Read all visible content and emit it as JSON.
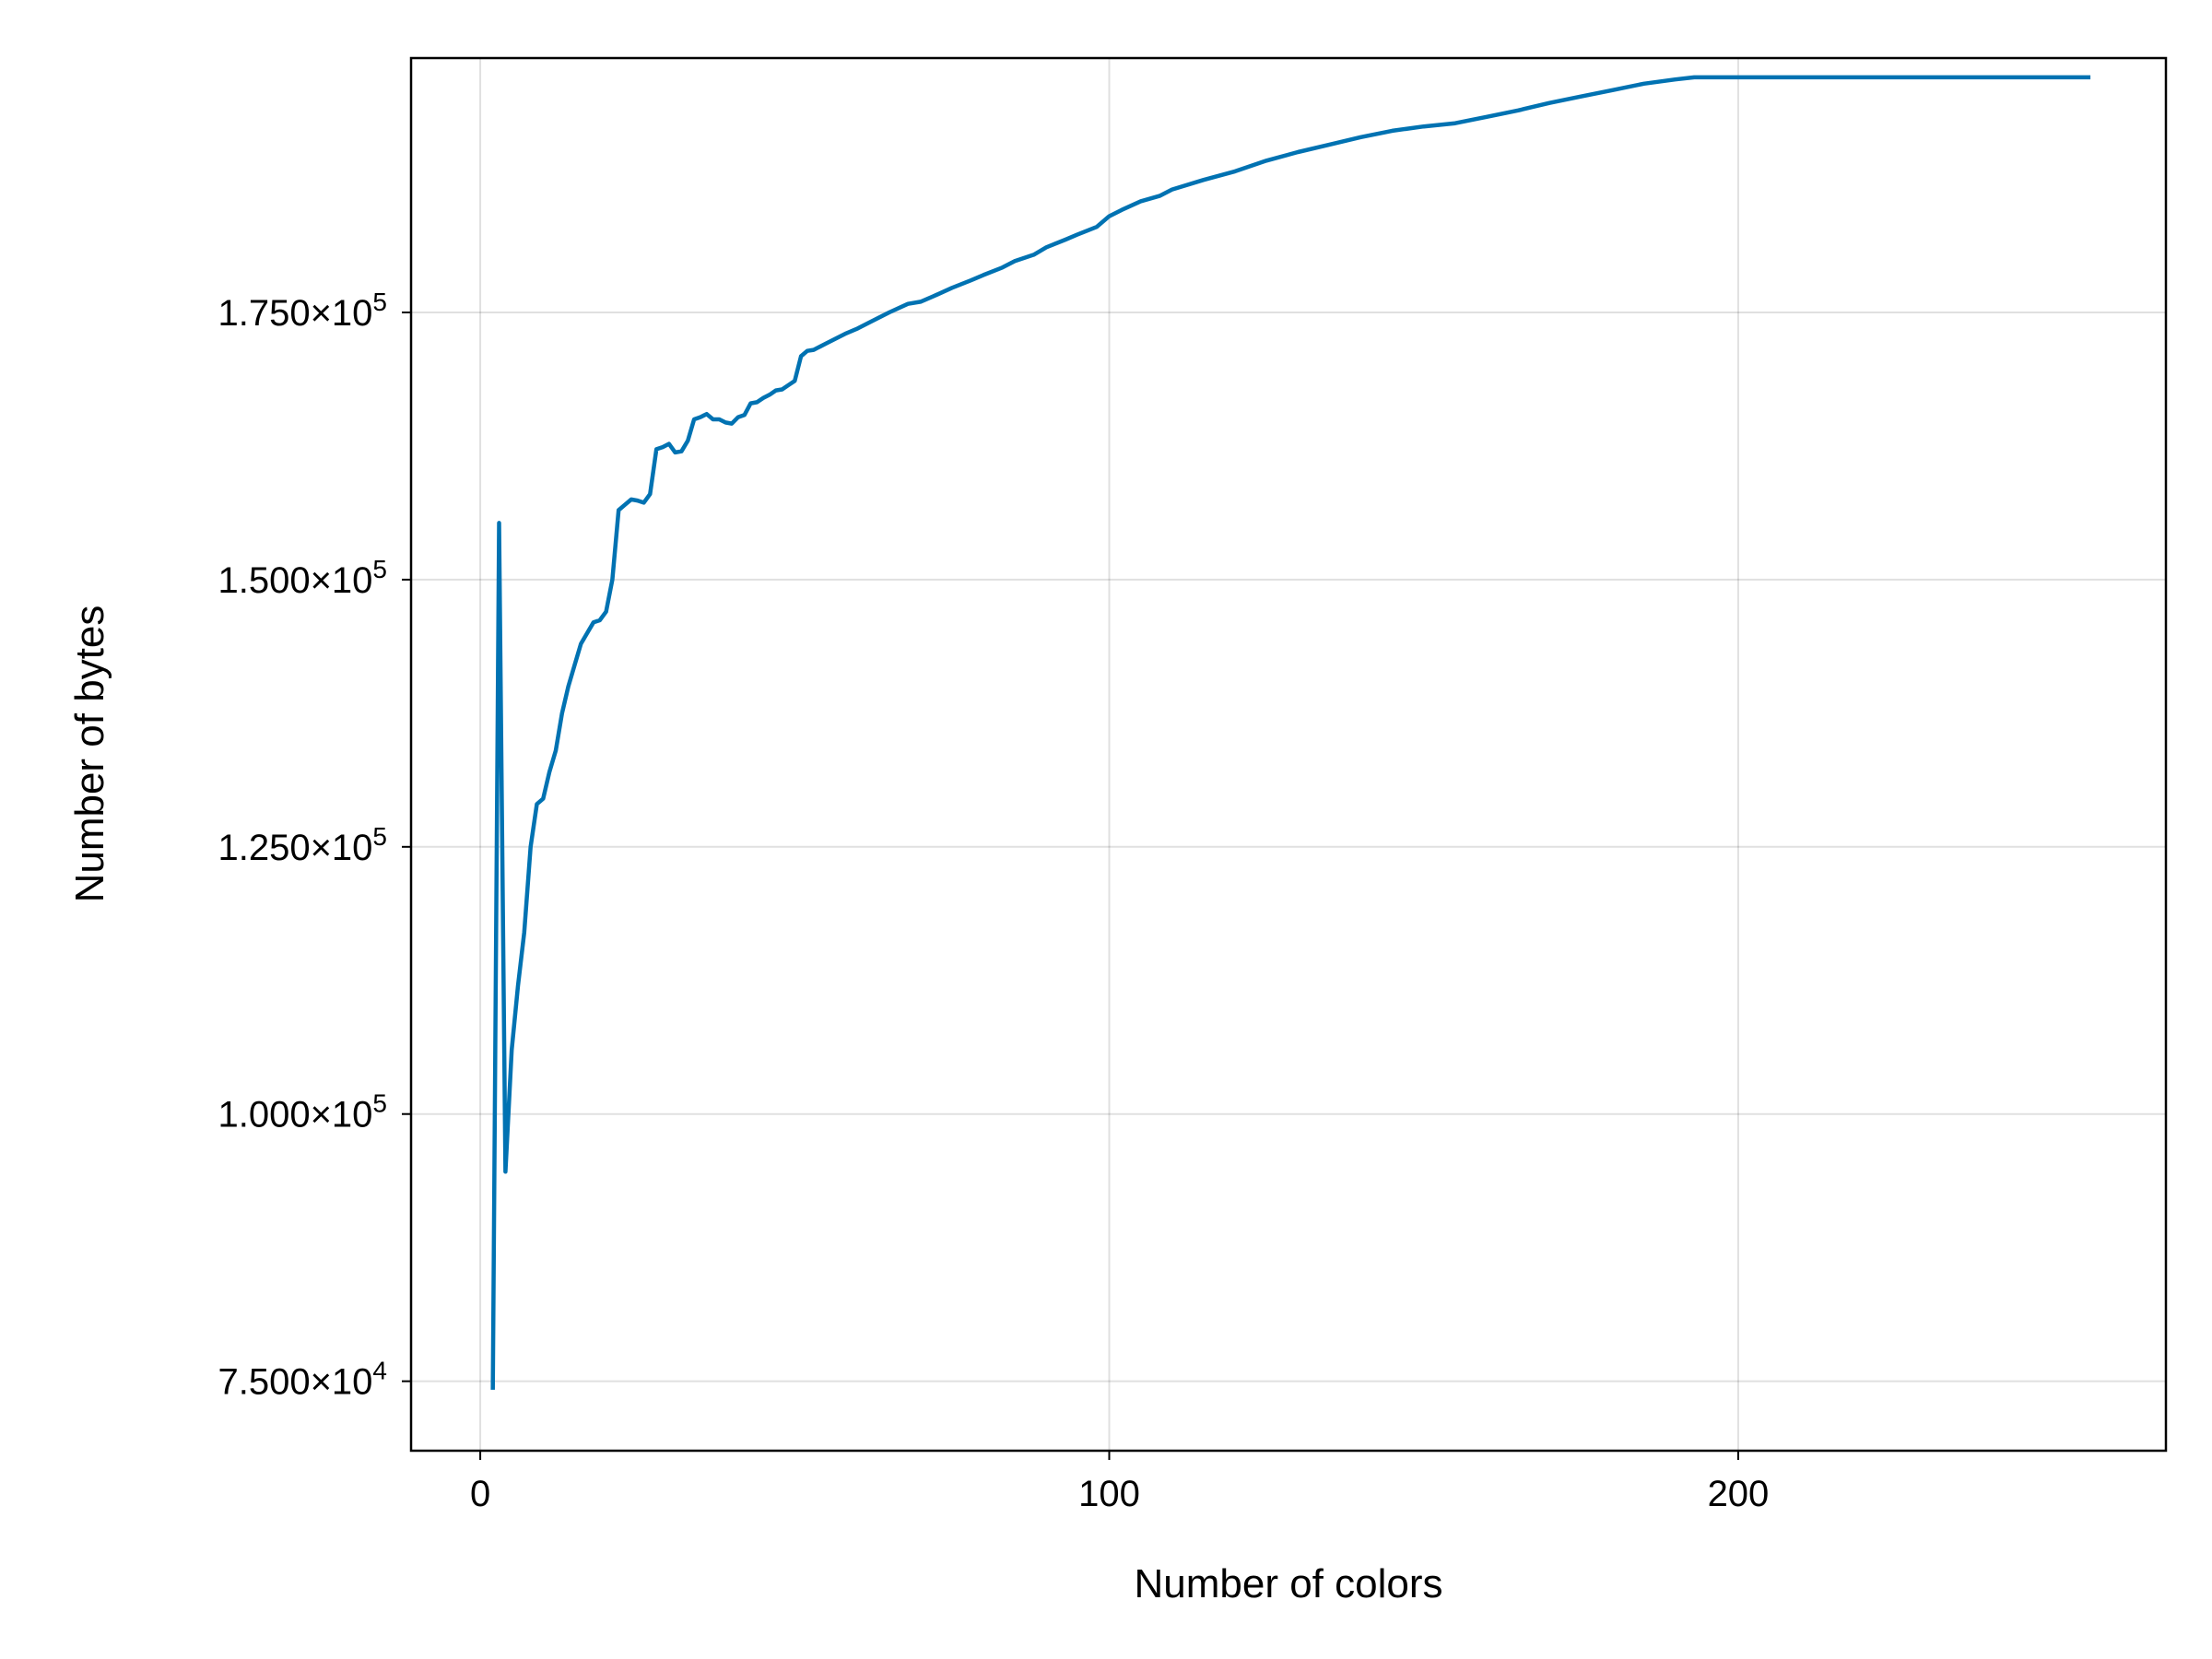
{
  "chart_data": {
    "type": "line",
    "title": "",
    "xlabel": "Number of colors",
    "ylabel": "Number of bytes",
    "xlim": [
      -11,
      268
    ],
    "ylim": [
      68500,
      198800
    ],
    "grid": true,
    "line_color": "#0072b2",
    "x_ticks": [
      {
        "value": 0,
        "label": "0"
      },
      {
        "value": 100,
        "label": "100"
      },
      {
        "value": 200,
        "label": "200"
      }
    ],
    "y_ticks": [
      {
        "value": 75000,
        "mantissa": "7.500×10",
        "exponent": "4"
      },
      {
        "value": 100000,
        "mantissa": "1.000×10",
        "exponent": "5"
      },
      {
        "value": 125000,
        "mantissa": "1.250×10",
        "exponent": "5"
      },
      {
        "value": 150000,
        "mantissa": "1.500×10",
        "exponent": "5"
      },
      {
        "value": 175000,
        "mantissa": "1.750×10",
        "exponent": "5"
      }
    ],
    "series": [
      {
        "x": [
          2,
          3,
          4,
          5,
          6,
          7,
          8,
          9,
          10,
          11,
          12,
          13,
          14,
          15,
          16,
          17,
          18,
          19,
          20,
          21,
          22,
          23,
          24,
          25,
          26,
          27,
          28,
          29,
          30,
          31,
          32,
          33,
          34,
          35,
          36,
          37,
          38,
          39,
          40,
          41,
          42,
          43,
          44,
          45,
          46,
          47,
          48,
          49,
          50,
          51,
          52,
          53,
          55,
          58,
          60,
          62,
          65,
          68,
          70,
          72,
          75,
          78,
          80,
          83,
          85,
          88,
          90,
          93,
          95,
          98,
          100,
          102,
          105,
          108,
          110,
          115,
          120,
          125,
          130,
          135,
          140,
          145,
          150,
          155,
          160,
          165,
          170,
          175,
          180,
          185,
          190,
          193,
          200,
          220,
          240,
          256
        ],
        "values": [
          74200,
          155300,
          94600,
          106000,
          112000,
          117000,
          125000,
          129000,
          129500,
          132000,
          134000,
          137500,
          140000,
          142000,
          144000,
          145000,
          146000,
          146200,
          147000,
          150000,
          156500,
          157000,
          157500,
          157400,
          157200,
          158000,
          162200,
          162400,
          162700,
          161900,
          162000,
          163000,
          165000,
          165200,
          165500,
          165000,
          165000,
          164700,
          164600,
          165200,
          165400,
          166500,
          166600,
          167000,
          167300,
          167700,
          167800,
          168200,
          168600,
          170900,
          171400,
          171500,
          172100,
          173000,
          173500,
          174100,
          175000,
          175800,
          176000,
          176500,
          177300,
          178000,
          178500,
          179200,
          179800,
          180400,
          181100,
          181800,
          182300,
          183000,
          184000,
          184600,
          185400,
          185900,
          186500,
          187400,
          188200,
          189200,
          190000,
          190700,
          191400,
          192000,
          192400,
          192700,
          193300,
          193900,
          194600,
          195200,
          195800,
          196400,
          196800,
          197000,
          197000,
          197000,
          197000,
          197000
        ]
      }
    ]
  }
}
